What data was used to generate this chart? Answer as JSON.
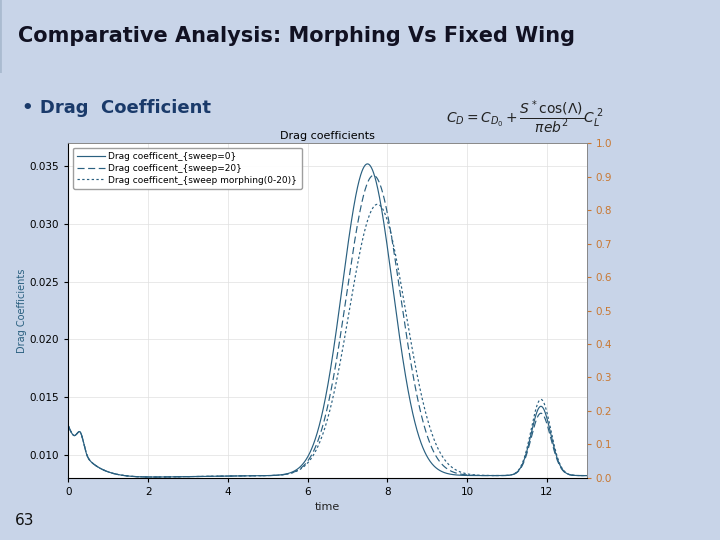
{
  "title": "Comparative Analysis: Morphing Vs Fixed Wing",
  "subtitle": "• Drag  Coefficient",
  "plot_title": "Drag coefficients",
  "xlabel": "time",
  "ylabel": "Drag Coefficients",
  "legend": [
    "Drag coefficent_{sweep=0}",
    "Drag coefficent_{sweep=20}",
    "Drag coefficent_{sweep morphing(0-20)}"
  ],
  "line_color": "#2a6080",
  "bg_color": "#c8d4e8",
  "plot_bg": "#ffffff",
  "right_yaxis_color": "#c87832",
  "right_yticks": [
    0,
    0.1,
    0.2,
    0.3,
    0.4,
    0.5,
    0.6,
    0.7,
    0.8,
    0.9,
    1
  ],
  "left_yticks": [
    0.01,
    0.015,
    0.02,
    0.025,
    0.03,
    0.035
  ],
  "xticks": [
    0,
    2,
    4,
    6,
    8,
    10,
    12
  ],
  "page_number": "63"
}
